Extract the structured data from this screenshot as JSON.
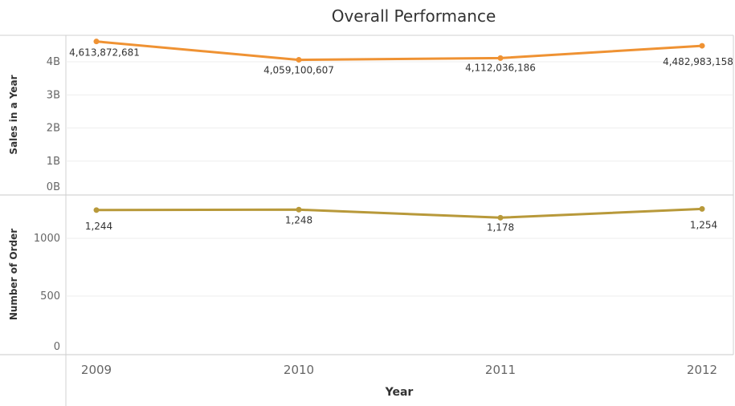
{
  "chart_data": {
    "title": "Overall Performance",
    "type": "line",
    "xlabel": "Year",
    "categories": [
      "2009",
      "2010",
      "2011",
      "2012"
    ],
    "panels": [
      {
        "ylabel": "Sales in a Year",
        "color": "#ef9233",
        "ylim": [
          0,
          4800000000
        ],
        "ticks": [
          {
            "value": 0,
            "label": "0B"
          },
          {
            "value": 1000000000,
            "label": "1B"
          },
          {
            "value": 2000000000,
            "label": "2B"
          },
          {
            "value": 3000000000,
            "label": "3B"
          },
          {
            "value": 4000000000,
            "label": "4B"
          }
        ],
        "values": [
          4613872681,
          4059100607,
          4112036186,
          4482983158
        ],
        "value_labels": [
          "4,613,872,681",
          "4,059,100,607",
          "4,112,036,186",
          "4,482,983,158"
        ]
      },
      {
        "ylabel": "Number of Order",
        "color": "#b8993a",
        "ylim": [
          0,
          1340
        ],
        "ticks": [
          {
            "value": 0,
            "label": "0"
          },
          {
            "value": 500,
            "label": "500"
          },
          {
            "value": 1000,
            "label": "1000"
          }
        ],
        "values": [
          1244,
          1248,
          1178,
          1254
        ],
        "value_labels": [
          "1,244",
          "1,248",
          "1,178",
          "1,254"
        ]
      }
    ]
  }
}
